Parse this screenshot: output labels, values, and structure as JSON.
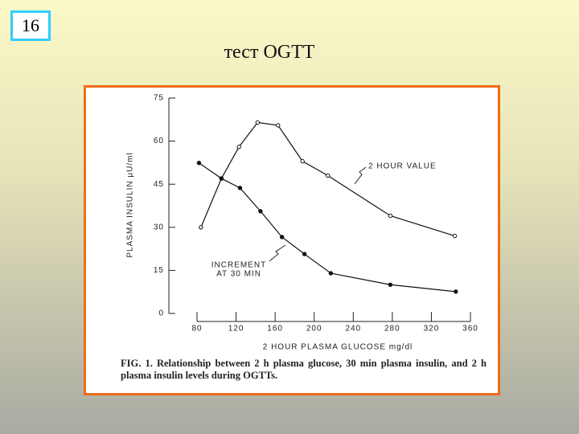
{
  "slide_number": "16",
  "title": "тест OGTT",
  "chart_data": {
    "type": "line",
    "y_label": "PLASMA INSULIN μU/ml",
    "x_label": "2 HOUR PLASMA GLUCOSE mg/dl",
    "xlim": [
      80,
      360
    ],
    "xticks": [
      80,
      120,
      160,
      200,
      240,
      280,
      320,
      360
    ],
    "ylim": [
      0,
      75
    ],
    "yticks": [
      0,
      15,
      30,
      45,
      60,
      75
    ],
    "series": [
      {
        "name": "2 HOUR VALUE",
        "color": "#111111",
        "marker": "open",
        "x": [
          84,
          105,
          123,
          142,
          163,
          188,
          214,
          278,
          344
        ],
        "values": [
          30,
          47,
          58,
          66.5,
          65.5,
          53,
          48,
          34,
          27
        ]
      },
      {
        "name": "INCREMENT AT 30 MIN",
        "color": "#111111",
        "marker": "filled",
        "x": [
          82,
          105,
          124,
          145,
          167,
          190,
          217,
          278,
          345
        ],
        "values": [
          52.4,
          47,
          43.7,
          35.6,
          26.6,
          20.7,
          14,
          10,
          7.6
        ]
      }
    ],
    "annotations": [
      "2 HOUR VALUE",
      "INCREMENT",
      "AT 30 MIN"
    ],
    "caption": "FIG. 1. Relationship between 2 h plasma glucose, 30 min plasma insulin, and 2 h plasma insulin levels during OGTTs."
  }
}
